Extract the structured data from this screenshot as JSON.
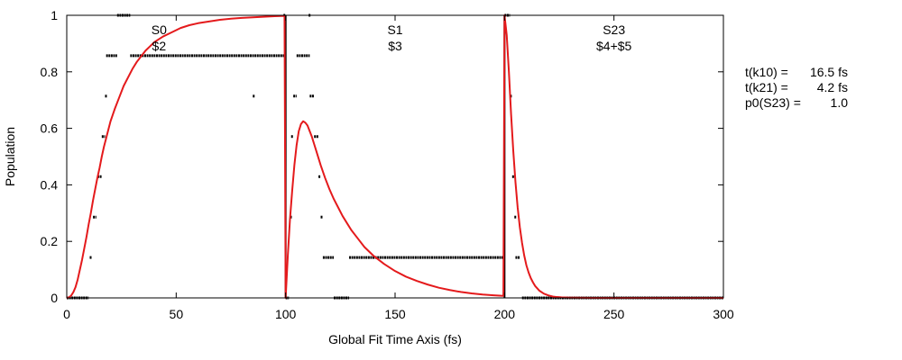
{
  "chart_data": {
    "type": "line",
    "xlabel": "Global Fit Time Axis (fs)",
    "ylabel": "Population",
    "xlim": [
      0,
      300
    ],
    "ylim": [
      0,
      1
    ],
    "x_ticks": [
      {
        "value": 0,
        "label": "0"
      },
      {
        "value": 50,
        "label": "50"
      },
      {
        "value": 100,
        "label": "100"
      },
      {
        "value": 150,
        "label": "150"
      },
      {
        "value": 200,
        "label": "200"
      },
      {
        "value": 250,
        "label": "250"
      },
      {
        "value": 300,
        "label": "300"
      }
    ],
    "y_ticks": [
      {
        "value": 0,
        "label": "0"
      },
      {
        "value": 0.2,
        "label": "0.2"
      },
      {
        "value": 0.4,
        "label": "0.4"
      },
      {
        "value": 0.6,
        "label": "0.6"
      },
      {
        "value": 0.8,
        "label": "0.8"
      },
      {
        "value": 1,
        "label": "1"
      }
    ],
    "grid": false,
    "panels": [
      {
        "x_center": 50,
        "title": "S0",
        "sub": "$2"
      },
      {
        "x_center": 150,
        "title": "S1",
        "sub": "$3"
      },
      {
        "x_center": 250,
        "title": "S23",
        "sub": "$4+$5"
      }
    ],
    "panel_separators": [
      100,
      200
    ],
    "fit_parameters": [
      {
        "label": "t(k10) =",
        "value": "16.5 fs"
      },
      {
        "label": "t(k21) =",
        "value": "4.2 fs"
      },
      {
        "label": "p0(S23) =",
        "value": "1.0"
      }
    ],
    "series": [
      {
        "kind": "line",
        "color": "#e41a1c",
        "x": [
          0,
          1,
          2,
          3,
          4,
          5,
          6,
          7,
          8,
          9,
          10,
          11,
          12,
          13,
          14,
          15,
          16,
          17,
          18,
          19,
          20,
          22,
          24,
          26,
          28,
          30,
          32,
          34,
          36,
          38,
          40,
          44,
          48,
          52,
          56,
          60,
          65,
          70,
          75,
          80,
          85,
          90,
          95,
          99.5,
          100,
          101,
          102,
          103,
          104,
          105,
          106,
          107,
          108,
          109,
          110,
          111,
          112,
          113,
          114,
          115,
          116,
          118,
          120,
          122,
          124,
          126,
          128,
          130,
          133,
          136,
          140,
          145,
          150,
          155,
          160,
          165,
          170,
          175,
          180,
          185,
          190,
          195,
          199.5,
          200,
          201,
          202,
          203,
          204,
          205,
          206,
          207,
          208,
          209,
          210,
          211,
          212,
          213,
          214,
          216,
          218,
          220,
          222,
          224,
          226,
          230,
          240,
          250,
          260,
          270,
          280,
          290,
          300
        ],
        "y": [
          0,
          0.002,
          0.008,
          0.02,
          0.038,
          0.065,
          0.1,
          0.135,
          0.175,
          0.215,
          0.26,
          0.3,
          0.345,
          0.385,
          0.425,
          0.46,
          0.5,
          0.535,
          0.565,
          0.595,
          0.625,
          0.67,
          0.71,
          0.75,
          0.78,
          0.81,
          0.835,
          0.855,
          0.875,
          0.89,
          0.905,
          0.925,
          0.94,
          0.955,
          0.965,
          0.972,
          0.978,
          0.984,
          0.988,
          0.991,
          0.993,
          0.995,
          0.997,
          0.998,
          0.0,
          0.15,
          0.28,
          0.38,
          0.47,
          0.54,
          0.59,
          0.615,
          0.625,
          0.62,
          0.61,
          0.59,
          0.57,
          0.545,
          0.52,
          0.495,
          0.47,
          0.425,
          0.385,
          0.35,
          0.32,
          0.29,
          0.265,
          0.24,
          0.21,
          0.18,
          0.15,
          0.12,
          0.095,
          0.075,
          0.06,
          0.047,
          0.036,
          0.028,
          0.021,
          0.016,
          0.012,
          0.009,
          0.007,
          1.0,
          0.93,
          0.8,
          0.65,
          0.52,
          0.41,
          0.32,
          0.25,
          0.195,
          0.15,
          0.115,
          0.09,
          0.07,
          0.055,
          0.042,
          0.025,
          0.015,
          0.009,
          0.005,
          0.003,
          0.002,
          0.001,
          0.0,
          0.0,
          0.0,
          0.0,
          0.0,
          0.0,
          0.0
        ]
      },
      {
        "kind": "scatter",
        "color": "#000000",
        "segments": [
          {
            "x0": 0,
            "x1": 10,
            "y": 0.0
          },
          {
            "x0": 10.5,
            "x1": 11.5,
            "y": 0.143
          },
          {
            "x0": 12,
            "x1": 13.5,
            "y": 0.286
          },
          {
            "x0": 14,
            "x1": 16,
            "y": 0.429
          },
          {
            "x0": 16,
            "x1": 17.5,
            "y": 0.571
          },
          {
            "x0": 17.5,
            "x1": 18,
            "y": 0.714
          },
          {
            "x0": 18,
            "x1": 23,
            "y": 0.857
          },
          {
            "x0": 23,
            "x1": 29,
            "y": 1.0
          },
          {
            "x0": 29,
            "x1": 100,
            "y": 0.857
          },
          {
            "x0": 85,
            "x1": 85.5,
            "y": 0.714
          },
          {
            "x0": 99,
            "x1": 100,
            "y": 1.0
          },
          {
            "x0": 100,
            "x1": 101.5,
            "y": 0.0
          },
          {
            "x0": 102,
            "x1": 102.5,
            "y": 0.286
          },
          {
            "x0": 102.5,
            "x1": 103.5,
            "y": 0.571
          },
          {
            "x0": 103.5,
            "x1": 105,
            "y": 0.714
          },
          {
            "x0": 105,
            "x1": 111,
            "y": 0.857
          },
          {
            "x0": 110.5,
            "x1": 111,
            "y": 1.0
          },
          {
            "x0": 111,
            "x1": 113,
            "y": 0.714
          },
          {
            "x0": 113,
            "x1": 115,
            "y": 0.571
          },
          {
            "x0": 115,
            "x1": 116,
            "y": 0.429
          },
          {
            "x0": 116,
            "x1": 116.5,
            "y": 0.286
          },
          {
            "x0": 117,
            "x1": 122,
            "y": 0.143
          },
          {
            "x0": 122,
            "x1": 129,
            "y": 0.0
          },
          {
            "x0": 129,
            "x1": 199.5,
            "y": 0.143
          },
          {
            "x0": 200,
            "x1": 202.5,
            "y": 1.0
          },
          {
            "x0": 202.5,
            "x1": 203,
            "y": 0.714
          },
          {
            "x0": 203.5,
            "x1": 204.5,
            "y": 0.429
          },
          {
            "x0": 204.5,
            "x1": 205,
            "y": 0.286
          },
          {
            "x0": 205,
            "x1": 207,
            "y": 0.143
          },
          {
            "x0": 208,
            "x1": 300,
            "y": 0.0
          }
        ]
      }
    ]
  }
}
